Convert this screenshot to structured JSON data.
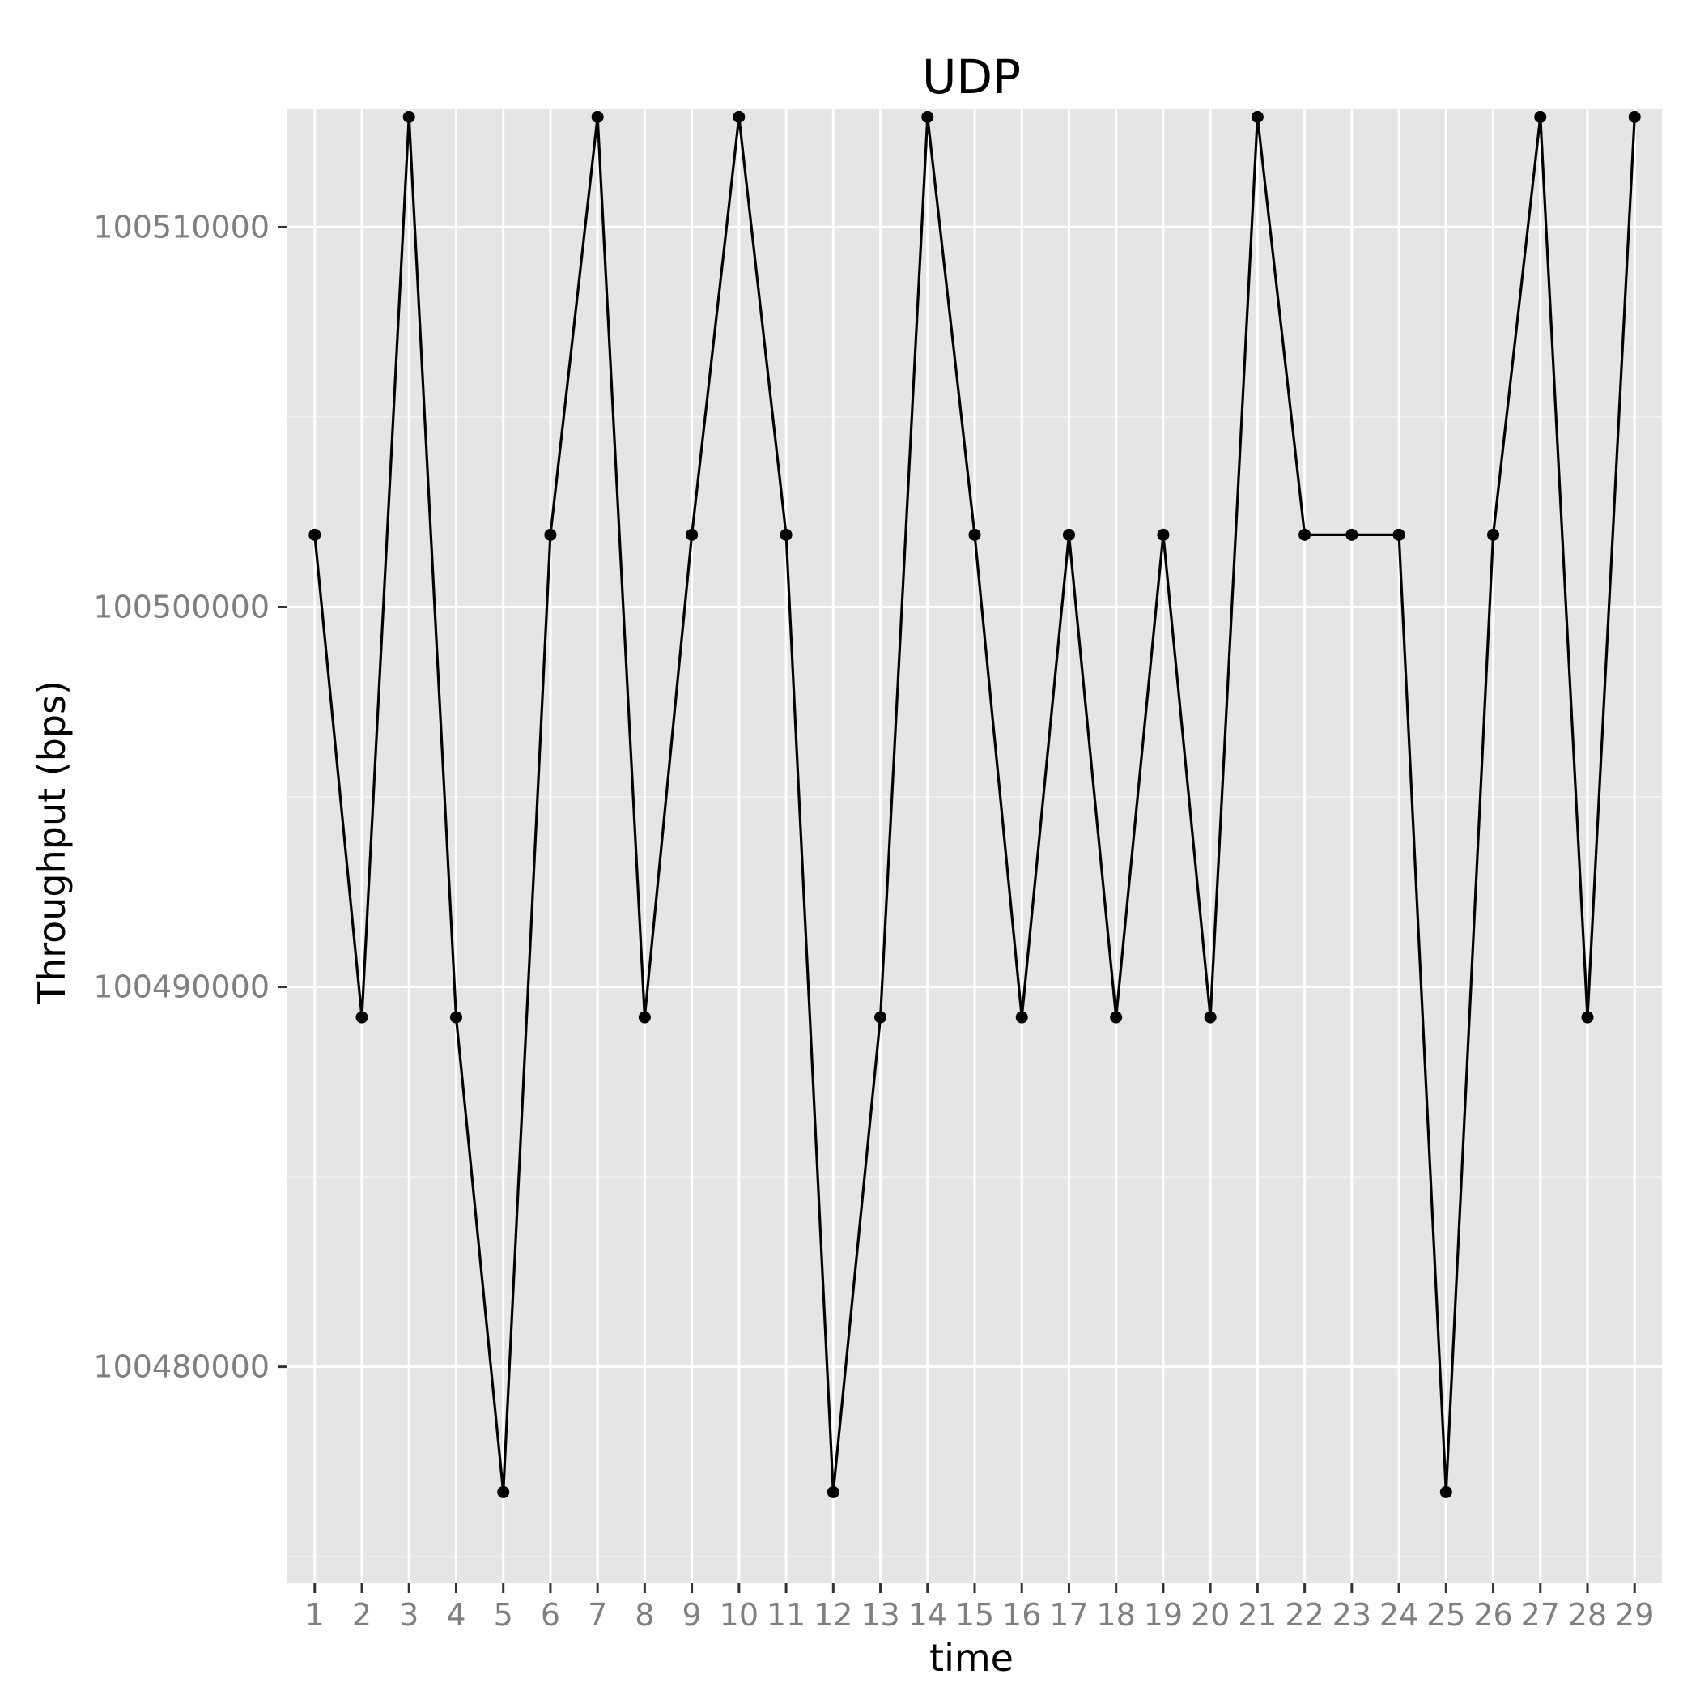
{
  "chart_data": {
    "type": "line",
    "title": "UDP",
    "xlabel": "time",
    "ylabel": "Throughput (bps)",
    "x": [
      1,
      2,
      3,
      4,
      5,
      6,
      7,
      8,
      9,
      10,
      11,
      12,
      13,
      14,
      15,
      16,
      17,
      18,
      19,
      20,
      21,
      22,
      23,
      24,
      25,
      26,
      27,
      28,
      29
    ],
    "x_tick_labels": [
      "1",
      "2",
      "3",
      "4",
      "5",
      "6",
      "7",
      "8",
      "9",
      "10",
      "11",
      "12",
      "13",
      "14",
      "15",
      "16",
      "17",
      "18",
      "19",
      "20",
      "21",
      "22",
      "23",
      "24",
      "25",
      "26",
      "27",
      "28",
      "29"
    ],
    "y_ticks": [
      100480000,
      100490000,
      100500000,
      100510000
    ],
    "y_tick_labels": [
      "100480000",
      "100490000",
      "100500000",
      "100510000"
    ],
    "xlim": [
      0.42,
      29.58
    ],
    "ylim": [
      100474300,
      100513100
    ],
    "series": [
      {
        "values": [
          100501900,
          100489200,
          100512900,
          100489200,
          100476700,
          100501900,
          100512900,
          100489200,
          100501900,
          100512900,
          100501900,
          100476700,
          100489200,
          100512900,
          100501900,
          100489200,
          100501900,
          100489200,
          100501900,
          100489200,
          100512900,
          100501900,
          100501900,
          100501900,
          100476700,
          100501900,
          100512900,
          100489200,
          100512900
        ],
        "color": "#000000"
      }
    ],
    "grid": true,
    "panel_background": "#e5e5e5",
    "grid_color": "#ffffff",
    "markers": "points"
  }
}
